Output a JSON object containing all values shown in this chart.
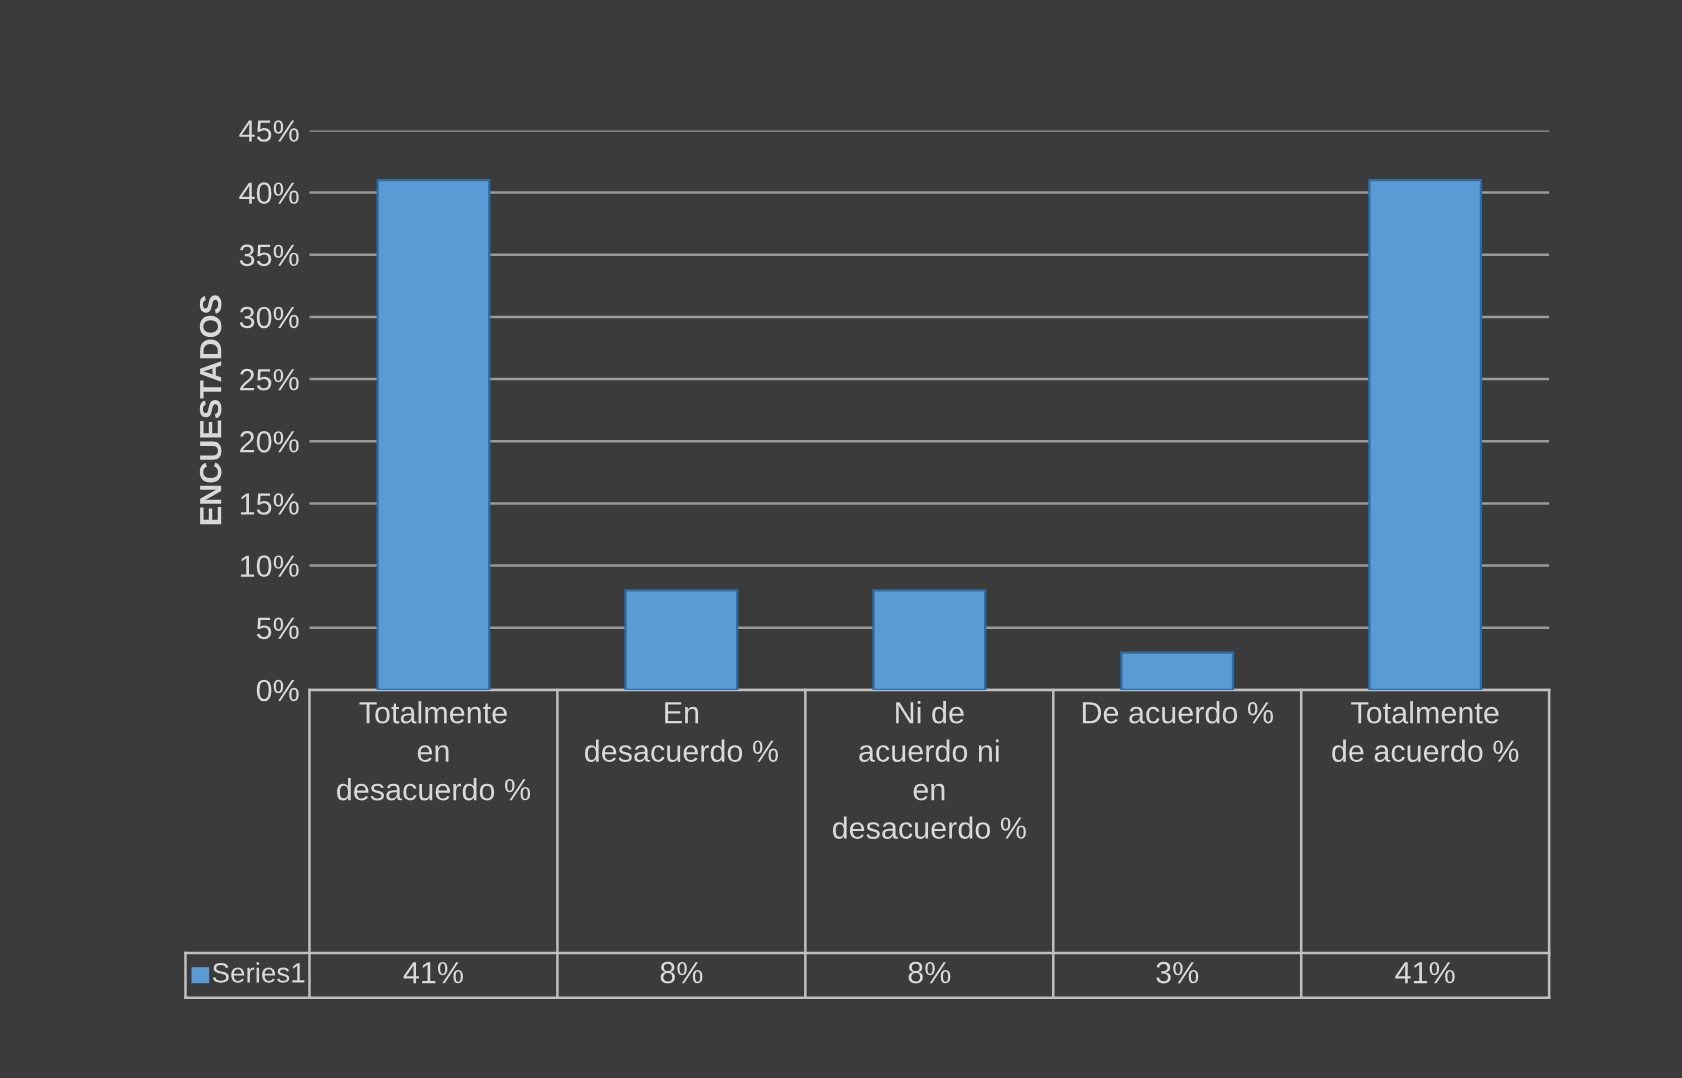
{
  "chart_data": {
    "type": "bar",
    "ylabel": "ENCUESTADOS",
    "categories": [
      "Totalmente en desacuerdo %",
      "En desacuerdo %",
      "Ni de acuerdo ni en desacuerdo %",
      "De acuerdo %",
      "Totalmente de acuerdo %"
    ],
    "series": [
      {
        "name": "Series1",
        "color": "#5b9bd5",
        "values": [
          41,
          8,
          8,
          3,
          41
        ],
        "value_labels": [
          "41%",
          "8%",
          "8%",
          "3%",
          "41%"
        ]
      }
    ],
    "ylim": [
      0,
      45
    ],
    "yticks": [
      {
        "value": 0,
        "label": "0%"
      },
      {
        "value": 5,
        "label": "5%"
      },
      {
        "value": 10,
        "label": "10%"
      },
      {
        "value": 15,
        "label": "15%"
      },
      {
        "value": 20,
        "label": "20%"
      },
      {
        "value": 25,
        "label": "25%"
      },
      {
        "value": 30,
        "label": "30%"
      },
      {
        "value": 35,
        "label": "35%"
      },
      {
        "value": 40,
        "label": "40%"
      },
      {
        "value": 45,
        "label": "45%"
      }
    ],
    "grid": "y"
  }
}
